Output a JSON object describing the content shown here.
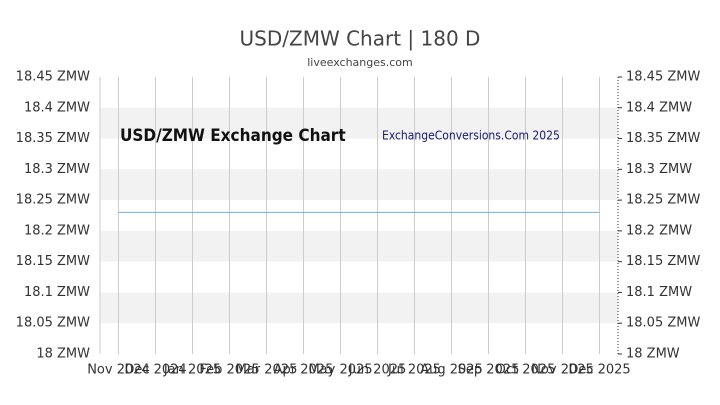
{
  "chart_data": {
    "type": "line",
    "title": "USD/ZMW Chart | 180 D",
    "subtitle": "liveexchanges.com",
    "annotations": [
      "USD/ZMW Exchange Chart",
      "ExchangeConversions.Com 2025"
    ],
    "categories": [
      "Nov 2024",
      "Dec 2024",
      "Jan 2025",
      "Feb 2025",
      "Mar 2025",
      "Apr 2025",
      "May 2025",
      "Jun 2025",
      "Jul 2025",
      "Aug 2025",
      "Sep 2025",
      "Oct 2025",
      "Nov 2025",
      "Dec 2025"
    ],
    "series": [
      {
        "name": "USD/ZMW",
        "color": "#6fb1d6",
        "values": [
          18.23,
          18.23,
          18.23,
          18.23,
          18.23,
          18.23,
          18.23,
          18.23,
          18.23,
          18.23,
          18.23,
          18.23,
          18.23,
          18.23
        ]
      }
    ],
    "ylim": [
      18,
      18.45
    ],
    "yticks": [
      {
        "value": 18,
        "label": "18 ZMW"
      },
      {
        "value": 18.05,
        "label": "18.05 ZMW"
      },
      {
        "value": 18.1,
        "label": "18.1 ZMW"
      },
      {
        "value": 18.15,
        "label": "18.15 ZMW"
      },
      {
        "value": 18.2,
        "label": "18.2 ZMW"
      },
      {
        "value": 18.25,
        "label": "18.25 ZMW"
      },
      {
        "value": 18.3,
        "label": "18.3 ZMW"
      },
      {
        "value": 18.35,
        "label": "18.35 ZMW"
      },
      {
        "value": 18.4,
        "label": "18.4 ZMW"
      },
      {
        "value": 18.45,
        "label": "18.45 ZMW"
      }
    ],
    "grid": true
  }
}
